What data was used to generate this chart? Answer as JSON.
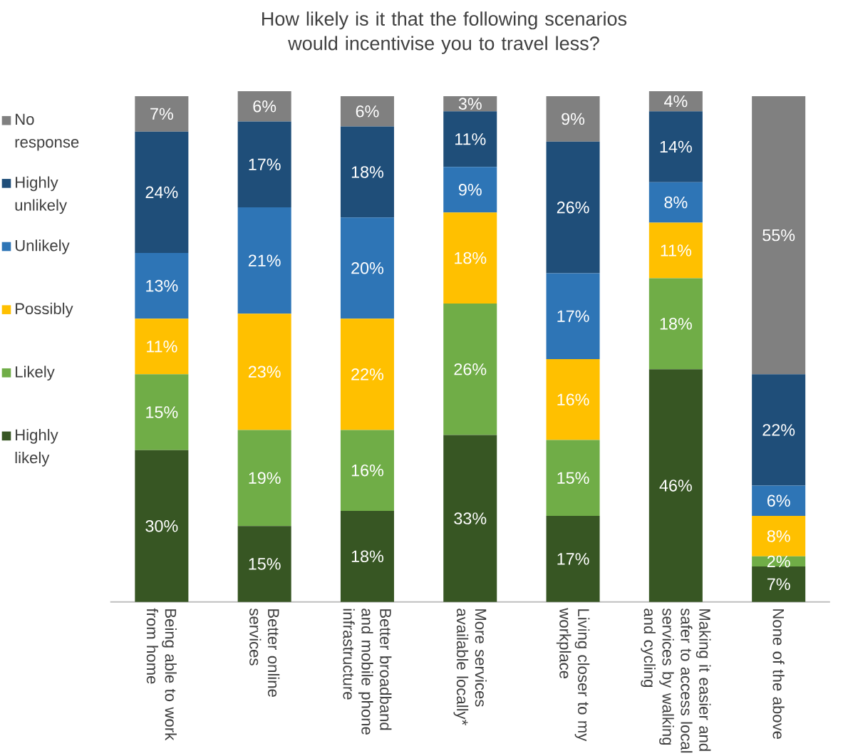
{
  "chart_data": {
    "type": "bar",
    "stacked": true,
    "legend": "left",
    "title": "How likely is it that the following scenarios would incentivise you to travel less?",
    "categories": [
      "Being able to work from home",
      "Better online services",
      "Better broadband and mobile phone infrastructure",
      "More services available locally*",
      "Living closer to my workplace",
      "Making it easier and safer to access local services by walking and cycling",
      "None of the above"
    ],
    "series": [
      {
        "name": "Highly likely",
        "color": "#375623",
        "values": [
          30,
          15,
          18,
          33,
          17,
          46,
          7
        ],
        "value_labels": [
          "30%",
          "15%",
          "18%",
          "33%",
          "17%",
          "46%",
          "7%"
        ]
      },
      {
        "name": "Likely",
        "color": "#70ad47",
        "values": [
          15,
          19,
          16,
          26,
          15,
          18,
          2
        ],
        "value_labels": [
          "15%",
          "19%",
          "16%",
          "26%",
          "15%",
          "18%",
          "2%"
        ]
      },
      {
        "name": "Possibly",
        "color": "#ffc000",
        "values": [
          11,
          23,
          22,
          18,
          16,
          11,
          8
        ],
        "value_labels": [
          "11%",
          "23%",
          "22%",
          "18%",
          "16%",
          "11%",
          "8%"
        ]
      },
      {
        "name": "Unlikely",
        "color": "#2e75b6",
        "values": [
          13,
          21,
          20,
          9,
          17,
          8,
          6
        ],
        "value_labels": [
          "13%",
          "21%",
          "20%",
          "9%",
          "17%",
          "8%",
          "6%"
        ]
      },
      {
        "name": "Highly unlikely",
        "color": "#1f4e79",
        "values": [
          24,
          17,
          18,
          11,
          26,
          14,
          22
        ],
        "value_labels": [
          "24%",
          "17%",
          "18%",
          "11%",
          "26%",
          "14%",
          "22%"
        ]
      },
      {
        "name": "No response",
        "color": "#808080",
        "values": [
          7,
          6,
          6,
          3,
          9,
          4,
          55
        ],
        "value_labels": [
          "7%",
          "6%",
          "6%",
          "3%",
          "9%",
          "4%",
          "55%"
        ]
      }
    ]
  }
}
